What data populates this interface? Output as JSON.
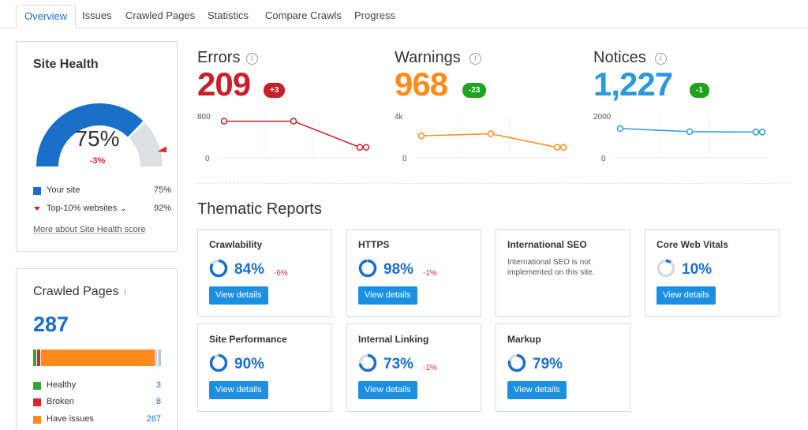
{
  "tabs": [
    "Overview",
    "Issues",
    "Crawled Pages",
    "Statistics",
    "Compare Crawls",
    "Progress"
  ],
  "colors": {
    "accent_blue": "#1a6fc9",
    "button_blue": "#1d8fe1",
    "error_red": "#c8202a",
    "warning_orange": "#ff8c1a",
    "notice_blue": "#2d98da",
    "positive_green": "#1fa31f",
    "gauge_grey": "#dde1e6"
  },
  "site_health": {
    "title": "Site Health",
    "score": "75%",
    "score_value": 75,
    "change": "-3%",
    "legend": [
      {
        "label": "Your site",
        "value": "75%"
      },
      {
        "label": "Top-10% websites",
        "value": "92%"
      }
    ],
    "top10_value": 92,
    "more_link": "More about Site Health score"
  },
  "issues": {
    "errors": {
      "label": "Errors",
      "value": "209",
      "delta": "+3",
      "y_top": "800",
      "y_zero": "0",
      "series": [
        700,
        700,
        200,
        200
      ],
      "ymax": 800
    },
    "warnings": {
      "label": "Warnings",
      "value": "968",
      "delta": "-23",
      "y_top": "4k",
      "y_zero": "0",
      "series": [
        2100,
        2300,
        1000,
        1000
      ],
      "ymax": 4000
    },
    "notices": {
      "label": "Notices",
      "value": "1,227",
      "delta": "-1",
      "y_top": "2000",
      "y_zero": "0",
      "series": [
        1400,
        1250,
        1230,
        1227
      ],
      "ymax": 2000
    }
  },
  "crawled_pages": {
    "title": "Crawled Pages",
    "info": "i",
    "count": "287",
    "breakdown": [
      {
        "label": "Healthy",
        "value": "3",
        "color": "#33a532"
      },
      {
        "label": "Broken",
        "value": "8",
        "color": "#d9262c"
      },
      {
        "label": "Have issues",
        "value": "267",
        "color": "#ff8c1a"
      }
    ]
  },
  "thematic": {
    "title": "Thematic Reports",
    "cards": [
      {
        "title": "Crawlability",
        "pct": "84%",
        "value": 84,
        "delta": "-6%",
        "button": "View details"
      },
      {
        "title": "HTTPS",
        "pct": "98%",
        "value": 98,
        "delta": "-1%",
        "button": "View details"
      },
      {
        "title": "International SEO",
        "desc": "International SEO is not implemented on this site."
      },
      {
        "title": "Core Web Vitals",
        "pct": "10%",
        "value": 10,
        "delta": "",
        "button": "View details"
      },
      {
        "title": "Site Performance",
        "pct": "90%",
        "value": 90,
        "delta": "",
        "button": "View details"
      },
      {
        "title": "Internal Linking",
        "pct": "73%",
        "value": 73,
        "delta": "-1%",
        "button": "View details"
      },
      {
        "title": "Markup",
        "pct": "79%",
        "value": 79,
        "delta": "",
        "button": "View details"
      }
    ]
  }
}
